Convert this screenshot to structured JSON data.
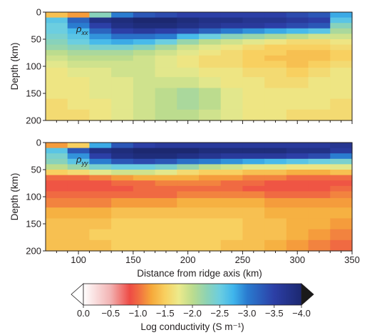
{
  "chart_data": {
    "type": "heatmap",
    "x_axis": {
      "label": "Distance from ridge axis (km)",
      "range": [
        70,
        350
      ],
      "ticks": [
        "100",
        "150",
        "200",
        "250",
        "300",
        "350"
      ]
    },
    "y_axis": {
      "label": "Depth (km)",
      "range": [
        0,
        200
      ],
      "inverted": true,
      "ticks": [
        "0",
        "50",
        "100",
        "150",
        "200"
      ]
    },
    "panels": [
      {
        "label_main": "ρ",
        "label_sub": "xx",
        "x_km": [
          80,
          100,
          120,
          140,
          160,
          180,
          200,
          220,
          240,
          260,
          280,
          300,
          320,
          340
        ],
        "depth_km": [
          5,
          15,
          25,
          35,
          45,
          55,
          65,
          75,
          85,
          95,
          110,
          130,
          150,
          170,
          190
        ],
        "log_conductivity": [
          [
            -1.4,
            -1.2,
            -2.3,
            -3.0,
            -3.3,
            -3.4,
            -3.5,
            -3.5,
            -3.5,
            -3.5,
            -3.5,
            -3.4,
            -3.3,
            -2.8
          ],
          [
            -2.6,
            -3.2,
            -3.8,
            -3.9,
            -4.0,
            -4.0,
            -3.9,
            -3.8,
            -3.8,
            -3.7,
            -3.7,
            -3.6,
            -3.5,
            -2.6
          ],
          [
            -2.5,
            -3.0,
            -3.5,
            -3.8,
            -3.9,
            -3.9,
            -3.8,
            -3.7,
            -3.6,
            -3.6,
            -3.5,
            -3.4,
            -3.3,
            -2.3
          ],
          [
            -2.5,
            -2.7,
            -3.2,
            -3.5,
            -3.6,
            -3.5,
            -3.4,
            -3.2,
            -3.0,
            -2.9,
            -2.8,
            -2.7,
            -2.6,
            -2.1
          ],
          [
            -2.4,
            -2.6,
            -2.9,
            -3.1,
            -3.1,
            -3.0,
            -2.7,
            -2.5,
            -2.3,
            -2.2,
            -2.1,
            -2.0,
            -1.9,
            -1.9
          ],
          [
            -2.3,
            -2.5,
            -2.7,
            -2.8,
            -2.7,
            -2.5,
            -2.2,
            -2.0,
            -1.9,
            -1.8,
            -1.7,
            -1.6,
            -1.6,
            -1.7
          ],
          [
            -2.2,
            -2.3,
            -2.4,
            -2.4,
            -2.3,
            -2.1,
            -1.9,
            -1.8,
            -1.7,
            -1.6,
            -1.5,
            -1.5,
            -1.5,
            -1.6
          ],
          [
            -2.0,
            -2.1,
            -2.1,
            -2.1,
            -2.0,
            -1.9,
            -1.8,
            -1.7,
            -1.6,
            -1.5,
            -1.5,
            -1.4,
            -1.4,
            -1.5
          ],
          [
            -1.9,
            -2.0,
            -2.0,
            -2.0,
            -1.9,
            -1.8,
            -1.7,
            -1.6,
            -1.6,
            -1.5,
            -1.4,
            -1.4,
            -1.4,
            -1.5
          ],
          [
            -1.8,
            -1.9,
            -1.9,
            -1.9,
            -1.9,
            -1.8,
            -1.7,
            -1.6,
            -1.6,
            -1.5,
            -1.5,
            -1.4,
            -1.5,
            -1.6
          ],
          [
            -1.7,
            -1.8,
            -1.8,
            -1.9,
            -1.9,
            -1.8,
            -1.8,
            -1.7,
            -1.7,
            -1.6,
            -1.6,
            -1.5,
            -1.6,
            -1.7
          ],
          [
            -1.7,
            -1.7,
            -1.8,
            -1.8,
            -1.9,
            -1.9,
            -1.9,
            -1.8,
            -1.7,
            -1.7,
            -1.6,
            -1.6,
            -1.7,
            -1.7
          ],
          [
            -1.7,
            -1.7,
            -1.8,
            -1.8,
            -1.9,
            -2.0,
            -2.1,
            -2.0,
            -1.8,
            -1.7,
            -1.7,
            -1.7,
            -1.7,
            -1.7
          ],
          [
            -1.6,
            -1.7,
            -1.7,
            -1.8,
            -1.9,
            -2.0,
            -2.1,
            -2.0,
            -1.8,
            -1.7,
            -1.7,
            -1.7,
            -1.7,
            -1.6
          ],
          [
            -1.6,
            -1.6,
            -1.7,
            -1.8,
            -1.9,
            -2.0,
            -2.0,
            -1.9,
            -1.8,
            -1.7,
            -1.7,
            -1.6,
            -1.6,
            -1.6
          ]
        ]
      },
      {
        "label_main": "ρ",
        "label_sub": "yy",
        "x_km": [
          80,
          100,
          120,
          140,
          160,
          180,
          200,
          220,
          240,
          260,
          280,
          300,
          320,
          340
        ],
        "depth_km": [
          5,
          15,
          25,
          35,
          45,
          55,
          65,
          75,
          85,
          95,
          110,
          130,
          150,
          170,
          190
        ],
        "log_conductivity": [
          [
            -1.2,
            -1.5,
            -2.8,
            -3.3,
            -3.5,
            -3.6,
            -3.6,
            -3.6,
            -3.6,
            -3.6,
            -3.6,
            -3.6,
            -3.6,
            -3.7
          ],
          [
            -2.6,
            -3.3,
            -3.8,
            -3.9,
            -4.0,
            -4.0,
            -4.0,
            -3.9,
            -3.9,
            -3.9,
            -3.9,
            -3.8,
            -3.8,
            -3.6
          ],
          [
            -2.4,
            -2.9,
            -3.5,
            -3.8,
            -3.9,
            -3.9,
            -3.8,
            -3.7,
            -3.6,
            -3.6,
            -3.6,
            -3.5,
            -3.4,
            -3.0
          ],
          [
            -2.3,
            -2.6,
            -3.0,
            -3.3,
            -3.4,
            -3.3,
            -3.1,
            -3.0,
            -2.9,
            -2.8,
            -2.7,
            -2.6,
            -2.5,
            -2.4
          ],
          [
            -2.0,
            -2.2,
            -2.4,
            -2.5,
            -2.5,
            -2.4,
            -2.2,
            -2.0,
            -1.9,
            -1.8,
            -1.8,
            -1.7,
            -1.7,
            -1.8
          ],
          [
            -1.5,
            -1.6,
            -1.8,
            -1.9,
            -1.9,
            -1.8,
            -1.6,
            -1.5,
            -1.5,
            -1.4,
            -1.4,
            -1.3,
            -1.3,
            -1.4
          ],
          [
            -1.0,
            -1.0,
            -1.1,
            -1.2,
            -1.3,
            -1.3,
            -1.3,
            -1.2,
            -1.2,
            -1.1,
            -1.1,
            -1.0,
            -1.0,
            -1.0
          ],
          [
            -0.9,
            -0.9,
            -0.9,
            -1.0,
            -1.0,
            -1.1,
            -1.1,
            -1.1,
            -1.0,
            -1.0,
            -0.9,
            -0.9,
            -0.9,
            -0.9
          ],
          [
            -0.9,
            -0.9,
            -0.9,
            -0.9,
            -1.0,
            -1.0,
            -1.0,
            -1.0,
            -1.0,
            -0.9,
            -0.9,
            -0.9,
            -0.9,
            -1.0
          ],
          [
            -1.0,
            -1.0,
            -1.0,
            -1.0,
            -1.0,
            -1.0,
            -1.1,
            -1.1,
            -1.1,
            -1.1,
            -1.0,
            -1.0,
            -1.0,
            -1.1
          ],
          [
            -1.1,
            -1.1,
            -1.1,
            -1.2,
            -1.2,
            -1.2,
            -1.3,
            -1.3,
            -1.3,
            -1.3,
            -1.2,
            -1.2,
            -1.2,
            -1.2
          ],
          [
            -1.3,
            -1.3,
            -1.3,
            -1.4,
            -1.4,
            -1.4,
            -1.4,
            -1.4,
            -1.4,
            -1.4,
            -1.3,
            -1.3,
            -1.3,
            -1.3
          ],
          [
            -1.4,
            -1.4,
            -1.4,
            -1.5,
            -1.5,
            -1.5,
            -1.5,
            -1.5,
            -1.5,
            -1.4,
            -1.4,
            -1.3,
            -1.3,
            -1.2
          ],
          [
            -1.4,
            -1.4,
            -1.5,
            -1.5,
            -1.5,
            -1.5,
            -1.5,
            -1.5,
            -1.5,
            -1.4,
            -1.4,
            -1.3,
            -1.2,
            -1.1
          ],
          [
            -1.4,
            -1.4,
            -1.4,
            -1.5,
            -1.5,
            -1.5,
            -1.5,
            -1.5,
            -1.4,
            -1.4,
            -1.3,
            -1.2,
            -1.1,
            -1.0
          ]
        ]
      }
    ],
    "colorbar": {
      "label": "Log conductivity (S m⁻¹)",
      "range": [
        0.0,
        -4.0
      ],
      "extend": "both",
      "tick_labels": [
        "0.0",
        "−0.5",
        "−1.0",
        "−1.5",
        "−2.0",
        "−2.5",
        "−3.0",
        "−3.5",
        "−4.0"
      ],
      "colormap": [
        [
          0.0,
          "#ffffff"
        ],
        [
          -0.5,
          "#f2b2b2"
        ],
        [
          -0.85,
          "#ee4b45"
        ],
        [
          -1.0,
          "#f06a42"
        ],
        [
          -1.25,
          "#f6a93a"
        ],
        [
          -1.5,
          "#f8d060"
        ],
        [
          -1.75,
          "#ecea8c"
        ],
        [
          -2.0,
          "#bcdc8e"
        ],
        [
          -2.25,
          "#8fd3b2"
        ],
        [
          -2.5,
          "#6ccee0"
        ],
        [
          -2.75,
          "#3fb5ec"
        ],
        [
          -3.0,
          "#2a7cd0"
        ],
        [
          -3.5,
          "#2c3fa6"
        ],
        [
          -4.0,
          "#1c2870"
        ]
      ],
      "under_color": "#ffffff",
      "over_color": "#1a1a1a"
    }
  }
}
